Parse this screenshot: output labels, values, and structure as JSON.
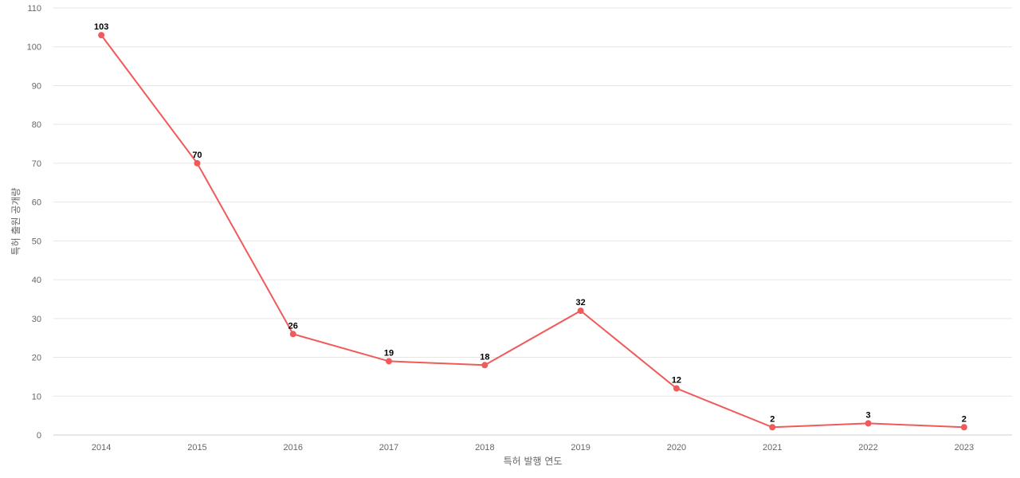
{
  "chart_data": {
    "type": "line",
    "title": "",
    "xlabel": "특허 발행 연도",
    "ylabel": "특허 출원 공개량",
    "categories": [
      "2014",
      "2015",
      "2016",
      "2017",
      "2018",
      "2019",
      "2020",
      "2021",
      "2022",
      "2023"
    ],
    "values": [
      103,
      70,
      26,
      19,
      18,
      32,
      12,
      2,
      3,
      2
    ],
    "ylim": [
      0,
      110
    ],
    "yticks": [
      0,
      10,
      20,
      30,
      40,
      50,
      60,
      70,
      80,
      90,
      100,
      110
    ],
    "grid": true,
    "legend": "none",
    "data_labels": true,
    "color": "#f05a5a"
  }
}
